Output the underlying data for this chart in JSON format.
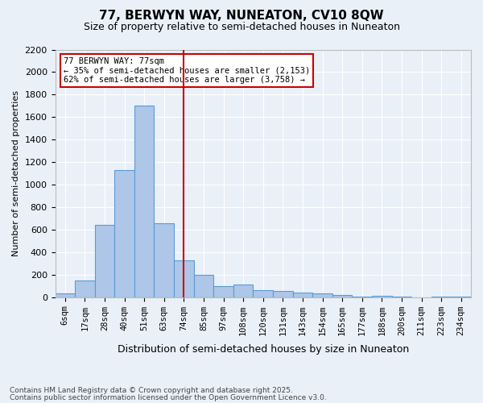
{
  "title1": "77, BERWYN WAY, NUNEATON, CV10 8QW",
  "title2": "Size of property relative to semi-detached houses in Nuneaton",
  "xlabel": "Distribution of semi-detached houses by size in Nuneaton",
  "ylabel": "Number of semi-detached properties",
  "bin_labels": [
    "6sqm",
    "17sqm",
    "28sqm",
    "40sqm",
    "51sqm",
    "63sqm",
    "74sqm",
    "85sqm",
    "97sqm",
    "108sqm",
    "120sqm",
    "131sqm",
    "143sqm",
    "154sqm",
    "165sqm",
    "177sqm",
    "188sqm",
    "200sqm",
    "211sqm",
    "223sqm",
    "234sqm"
  ],
  "bar_values": [
    30,
    150,
    640,
    1130,
    1700,
    660,
    330,
    200,
    100,
    110,
    60,
    55,
    40,
    30,
    20,
    5,
    15,
    5,
    0,
    5,
    2
  ],
  "bar_color": "#aec6e8",
  "bar_edge_color": "#5a9bd5",
  "vline_x": 6,
  "vline_color": "#cc0000",
  "annotation_title": "77 BERWYN WAY: 77sqm",
  "annotation_line1": "← 35% of semi-detached houses are smaller (2,153)",
  "annotation_line2": "62% of semi-detached houses are larger (3,758) →",
  "annotation_box_color": "#ffffff",
  "annotation_edge_color": "#cc0000",
  "ylim": [
    0,
    2200
  ],
  "yticks": [
    0,
    200,
    400,
    600,
    800,
    1000,
    1200,
    1400,
    1600,
    1800,
    2000,
    2200
  ],
  "footer1": "Contains HM Land Registry data © Crown copyright and database right 2025.",
  "footer2": "Contains public sector information licensed under the Open Government Licence v3.0.",
  "bg_color": "#eaf0f8",
  "plot_bg_color": "#eaf0f8",
  "grid_color": "#ffffff"
}
